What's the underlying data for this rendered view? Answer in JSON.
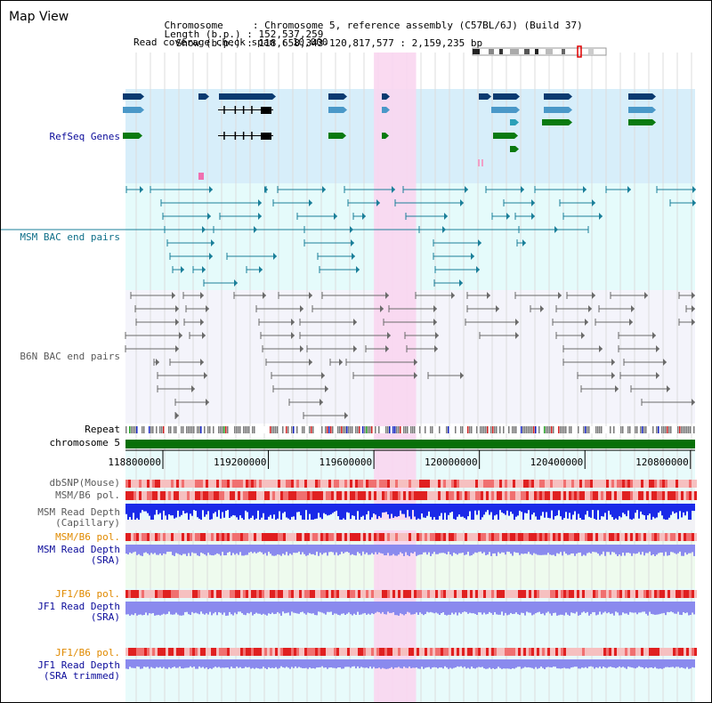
{
  "app_title": "Map View",
  "header": {
    "lines": [
      {
        "key": "Chromosome     ",
        "value": "Chromosome 5, reference assembly (C57BL/6J) (Build 37)"
      },
      {
        "key": "Length (b.p.) ",
        "value": "152,537,259"
      },
      {
        "key": "  Show (b.p.) ",
        "value": "118,658,343-120,817,577 : 2,159,235 bp"
      }
    ],
    "coverage_line": "Read coverage check span : 10,000"
  },
  "chromosome": {
    "name": "chromosome 5",
    "highlight_color": "#e00000",
    "bar_color": "#087008"
  },
  "axis": {
    "ticks": [
      {
        "label": "118800000",
        "value": 118800000
      },
      {
        "label": "119200000",
        "value": 119200000
      },
      {
        "label": "119600000",
        "value": 119600000
      },
      {
        "label": "120000000",
        "value": 120000000
      },
      {
        "label": "120400000",
        "value": 120400000
      },
      {
        "label": "120800000",
        "value": 120800000
      }
    ],
    "start": 118658343,
    "end": 120817577
  },
  "highlight_region": {
    "start": 119600000,
    "end": 119760000,
    "color": "#f9d6f0"
  },
  "tracks": [
    {
      "id": "refseq",
      "label": "RefSeq Genes",
      "color_class": "navy",
      "bg": "#d7eefa"
    },
    {
      "id": "msm_bac",
      "label": "MSM BAC end pairs",
      "color_class": "teal",
      "bg": "#e5fbfb"
    },
    {
      "id": "b6n_bac",
      "label": "B6N BAC end pairs",
      "color_class": "grey",
      "bg": "#f4f4fb"
    },
    {
      "id": "repeat",
      "label": "Repeat",
      "color_class": "blk"
    },
    {
      "id": "chr",
      "label": "chromosome 5",
      "color_class": "blk"
    },
    {
      "id": "dbsnp",
      "label": "dbSNP(Mouse)",
      "color_class": "grey"
    },
    {
      "id": "msm_b6_pol1",
      "label": "MSM/B6 pol.",
      "color_class": "grey"
    },
    {
      "id": "msm_depth_cap",
      "label": "MSM Read Depth\n(Capillary)",
      "color_class": "grey"
    },
    {
      "id": "msm_b6_pol2",
      "label": "MSM/B6 pol.",
      "color_class": "orange"
    },
    {
      "id": "msm_depth_sra",
      "label": "MSM Read Depth\n(SRA)",
      "color_class": "navy"
    },
    {
      "id": "jf1_b6_pol1",
      "label": "JF1/B6 pol.",
      "color_class": "orange"
    },
    {
      "id": "jf1_depth_sra",
      "label": "JF1 Read Depth\n(SRA)",
      "color_class": "navy"
    },
    {
      "id": "jf1_b6_pol2",
      "label": "JF1/B6 pol.",
      "color_class": "orange"
    },
    {
      "id": "jf1_depth_trim",
      "label": "JF1 Read Depth\n(SRA trimmed)",
      "color_class": "navy"
    }
  ],
  "colors": {
    "gene_dark": "#0a3a70",
    "gene_mid": "#4a98c8",
    "gene_teal": "#2aa0b8",
    "gene_green": "#0a7a10",
    "msm_pair": "#1a7f99",
    "b6n_pair": "#6a6a6a",
    "snp_light": "#f4b0b0",
    "snp_red": "#e02020",
    "depth_blue": "#1a2ae8",
    "depth_light": "#8a8aee"
  }
}
